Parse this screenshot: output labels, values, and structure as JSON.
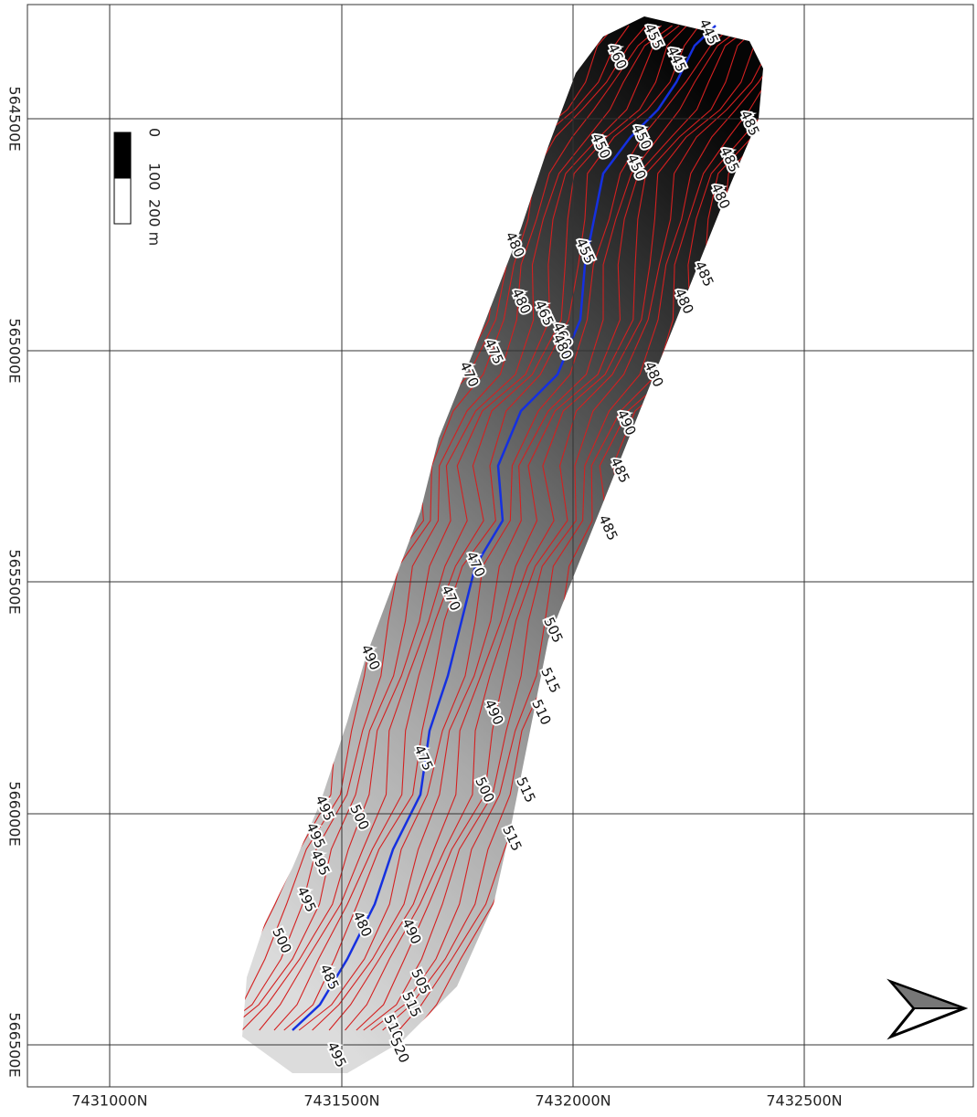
{
  "grid": {
    "x_labels": [
      "7431000N",
      "7431500N",
      "7432000N",
      "7432500N"
    ],
    "y_labels": [
      "564500E",
      "565000E",
      "565500E",
      "566000E",
      "566500E"
    ]
  },
  "scale_bar": {
    "labels": [
      "0",
      "100",
      "200 m"
    ]
  },
  "contour_labels": [
    445,
    455,
    460,
    445,
    485,
    450,
    450,
    450,
    485,
    480,
    480,
    455,
    485,
    480,
    480,
    465,
    460,
    480,
    475,
    470,
    480,
    490,
    485,
    485,
    470,
    470,
    505,
    490,
    515,
    510,
    490,
    475,
    500,
    515,
    495,
    500,
    495,
    515,
    495,
    495,
    480,
    490,
    500,
    485,
    505,
    515,
    510,
    520,
    495
  ]
}
